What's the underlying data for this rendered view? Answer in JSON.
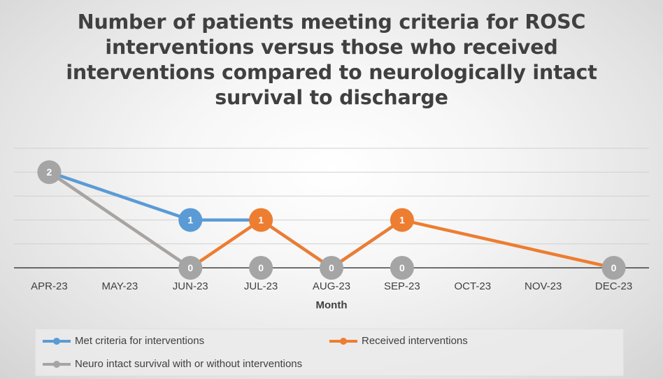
{
  "chart_data": {
    "type": "line",
    "title": "Number of patients meeting criteria for ROSC interventions versus those who received interventions compared to neurologically intact survival to discharge",
    "xlabel": "Month",
    "ylabel": "",
    "categories": [
      "APR-23",
      "MAY-23",
      "JUN-23",
      "JUL-23",
      "AUG-23",
      "SEP-23",
      "OCT-23",
      "NOV-23",
      "DEC-23"
    ],
    "ylim": [
      0,
      2.5
    ],
    "gridlines": [
      0,
      0.5,
      1,
      1.5,
      2,
      2.5
    ],
    "legend_position": "bottom",
    "series": [
      {
        "name": "Met criteria for interventions",
        "color": "#5B9BD5",
        "points": [
          {
            "x": "APR-23",
            "y": 2
          },
          {
            "x": "JUN-23",
            "y": 1
          },
          {
            "x": "JUL-23",
            "y": 1
          },
          {
            "x": "AUG-23",
            "y": 0
          },
          {
            "x": "SEP-23",
            "y": 1
          }
        ],
        "labeled": [
          {
            "x": "JUN-23",
            "y": 1
          }
        ]
      },
      {
        "name": "Received interventions",
        "color": "#ED7D31",
        "points": [
          {
            "x": "APR-23",
            "y": 2
          },
          {
            "x": "JUN-23",
            "y": 0
          },
          {
            "x": "JUL-23",
            "y": 1
          },
          {
            "x": "AUG-23",
            "y": 0
          },
          {
            "x": "SEP-23",
            "y": 1
          },
          {
            "x": "DEC-23",
            "y": 0
          }
        ],
        "labeled": [
          {
            "x": "JUL-23",
            "y": 1
          },
          {
            "x": "SEP-23",
            "y": 1
          }
        ]
      },
      {
        "name": "Neuro intact survival with or without interventions",
        "color": "#A5A5A5",
        "points": [
          {
            "x": "APR-23",
            "y": 2
          },
          {
            "x": "JUN-23",
            "y": 0
          }
        ],
        "labeled": [
          {
            "x": "APR-23",
            "y": 2
          },
          {
            "x": "JUN-23",
            "y": 0
          },
          {
            "x": "JUL-23",
            "y": 0
          },
          {
            "x": "AUG-23",
            "y": 0
          },
          {
            "x": "SEP-23",
            "y": 0
          },
          {
            "x": "DEC-23",
            "y": 0
          }
        ]
      }
    ]
  }
}
